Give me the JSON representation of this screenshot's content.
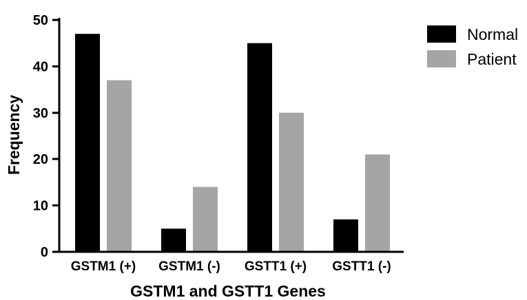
{
  "chart_data": {
    "type": "bar",
    "title": "",
    "xlabel": "GSTM1 and GSTT1 Genes",
    "ylabel": "Frequency",
    "categories": [
      "GSTM1 (+)",
      "GSTM1 (-)",
      "GSTT1 (+)",
      "GSTT1 (-)"
    ],
    "series": [
      {
        "name": "Normal",
        "values": [
          47,
          5,
          45,
          7
        ],
        "color": "#000000"
      },
      {
        "name": "Patient",
        "values": [
          37,
          14,
          30,
          21
        ],
        "color": "#a5a5a8"
      }
    ],
    "ylim": [
      0,
      50
    ],
    "yticks": [
      0,
      10,
      20,
      30,
      40,
      50
    ],
    "grid": false,
    "legend_position": "top-right"
  }
}
